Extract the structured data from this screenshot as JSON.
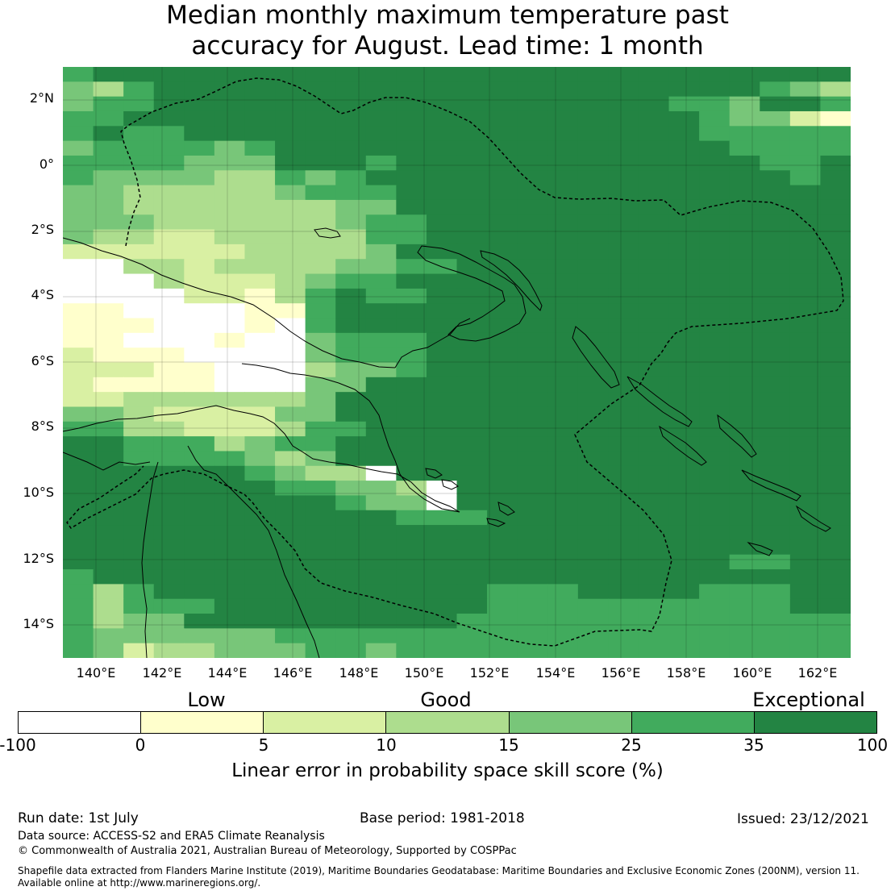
{
  "title_line1": "Median monthly maximum temperature past",
  "title_line2": "accuracy for August. Lead time: 1 month",
  "lat_labels": [
    "2°N",
    "0°",
    "2°S",
    "4°S",
    "6°S",
    "8°S",
    "10°S",
    "12°S",
    "14°S"
  ],
  "lon_labels": [
    "140°E",
    "142°E",
    "144°E",
    "146°E",
    "148°E",
    "150°E",
    "152°E",
    "154°E",
    "156°E",
    "158°E",
    "160°E",
    "162°E"
  ],
  "categories": [
    "Low",
    "Good",
    "Exceptional"
  ],
  "colorbar": {
    "ticks": [
      "-100",
      "0",
      "5",
      "10",
      "15",
      "25",
      "35",
      "100"
    ],
    "colors": [
      "#ffffff",
      "#ffffcc",
      "#d9f0a3",
      "#addd8e",
      "#78c679",
      "#41ab5d",
      "#238443"
    ],
    "label": "Linear error in probability space skill score (%)"
  },
  "footer": {
    "run_date": "Run date: 1st July",
    "base_period": "Base period: 1981-2018",
    "issued": "Issued: 23/12/2021",
    "data_source": "Data source: ACCESS-S2 and ERA5 Climate Reanalysis",
    "copyright": "© Commonwealth of Australia 2021, Australian Bureau of Meteorology, Supported by COSPPac",
    "shapefile_line1": "Shapefile data extracted from Flanders Marine Institute (2019), Maritime Boundaries Geodatabase: Maritime Boundaries and Exclusive Economic Zones (200NM), version 11.",
    "shapefile_line2": "Available online at http://www.marineregions.org/."
  }
}
